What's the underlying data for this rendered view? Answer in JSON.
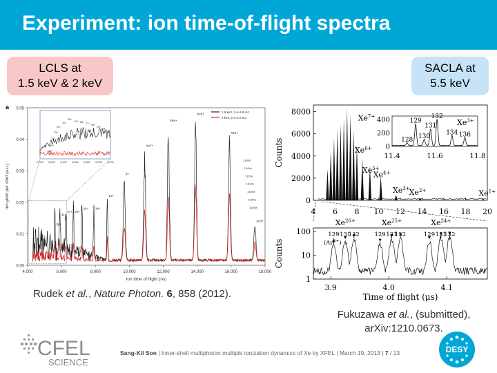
{
  "slide": {
    "title": "Experiment: ion time-of-flight spectra",
    "lcls_box": [
      "LCLS at",
      "1.5 keV & 2 keV"
    ],
    "sacla_box": [
      "SACLA at",
      "5.5 keV"
    ],
    "left_citation": {
      "authors": "Rudek ",
      "etal": "et al.",
      "sep": ", ",
      "journal": "Nature Photon.",
      "vol": "6",
      "rest": ", 858 (2012)."
    },
    "right_citation": {
      "line1a": "Fukuzawa ",
      "line1b": "et al.",
      "line1c": ", (submitted),",
      "line2": "arXiv:1210.0673."
    }
  },
  "footer": {
    "author": "Sang-Kil Son",
    "text": "Inner-shell multiphoton multiple ionization dynamics of Xe by XFEL",
    "date": "March 19, 2013",
    "page": "7",
    "total": "/ 13"
  },
  "logos": {
    "cfel_top": "CFEL",
    "cfel_bottom": "SCIENCE",
    "desy": "DESY"
  },
  "colors": {
    "title_bar": "#00a7d6",
    "lcls_box": "#f8c8c8",
    "sacla_box": "#c7e3f8",
    "series_black": "#222222",
    "series_red": "#dd2222"
  },
  "chart_data": [
    {
      "type": "line",
      "panel_label": "a",
      "xlabel": "Ion time of flight (ns)",
      "ylabel": "Ion yield per shot (a.u.)",
      "xlim": [
        4000,
        18000
      ],
      "ylim": [
        0,
        0.05
      ],
      "x_ticks": [
        "4,000",
        "6,000",
        "8,000",
        "10,000",
        "12,000",
        "14,000",
        "16,000",
        "18,000"
      ],
      "y_ticks": [
        "0.00",
        "0.01",
        "0.02",
        "0.03",
        "0.04",
        "0.05"
      ],
      "legend": [
        "1.5 keV, 2.4–2.6 mJ",
        "2 keV, 2.4–2.6 mJ"
      ],
      "series": [
        {
          "name": "1.5 keV, 2.4–2.6 mJ",
          "color": "#222222"
        },
        {
          "name": "2 keV, 2.4–2.6 mJ",
          "color": "#dd2222"
        }
      ],
      "peaks_x": [
        5600,
        5900,
        6250,
        6700,
        7200,
        7900,
        8700,
        9700,
        10900,
        12300,
        13900,
        15900,
        17400
      ],
      "peaks_black": [
        0.012,
        0.015,
        0.016,
        0.016,
        0.017,
        0.017,
        0.021,
        0.028,
        0.037,
        0.045,
        0.047,
        0.041,
        0.013
      ],
      "peaks_red": [
        0.004,
        0.005,
        0.005,
        0.005,
        0.005,
        0.005,
        0.008,
        0.012,
        0.018,
        0.024,
        0.028,
        0.023,
        0.006
      ],
      "peak_labels": [
        "35+",
        "31+",
        "27+",
        "20+",
        "16+",
        "14+",
        "10+",
        "9+",
        "Xe7+",
        "Xe6+",
        "Xe5+",
        "Xe4+",
        "Xe3+"
      ],
      "isotope_labels": [
        "136Xe",
        "134Xe",
        "132Xe",
        "131Xe",
        "130Xe",
        "129Xe",
        "128Xe"
      ],
      "inset": {
        "x_ticks": [
          "5,000",
          "5,200",
          "5,400",
          "5,600",
          "5,800",
          "6,000",
          "6,200"
        ],
        "labels": [
          "30+",
          "31+",
          "29+",
          "28+",
          "27+",
          "26+",
          "25+",
          "24+",
          "32+",
          "33+",
          "34+",
          "35+",
          "36+"
        ]
      }
    },
    {
      "type": "line",
      "xlabel": "",
      "ylabel": "Counts",
      "xlim": [
        4,
        20
      ],
      "ylim": [
        0,
        8600
      ],
      "x_ticks": [
        "4",
        "6",
        "8",
        "10",
        "12",
        "14",
        "16",
        "18",
        "20"
      ],
      "y_ticks": [
        "0",
        "2000",
        "4000",
        "6000",
        "8000"
      ],
      "peaks_x": [
        5.3,
        5.6,
        5.9,
        6.2,
        6.5,
        6.8,
        7.1,
        7.4,
        7.7,
        8.0,
        8.5,
        9.2,
        10.2,
        11.6,
        13.8,
        19.6
      ],
      "peaks_y": [
        2800,
        4500,
        5600,
        6400,
        6900,
        7400,
        8400,
        7800,
        6300,
        5000,
        3800,
        3100,
        2200,
        500,
        250,
        150
      ],
      "annotations": [
        "Xe7+",
        "Xe6+",
        "Xe5+",
        "Xe4+",
        "Xe3+",
        "Xe2+",
        "Xe1+"
      ],
      "inset": {
        "xlim": [
          11.4,
          11.8
        ],
        "x_ticks": [
          "11.4",
          "11.6",
          "11.8"
        ],
        "y_ticks": [
          "0",
          "200",
          "400"
        ],
        "label": "Xe3+",
        "isotopes": [
          "128",
          "129",
          "130",
          "131",
          "132",
          "134",
          "136"
        ],
        "isotope_x": [
          11.47,
          11.51,
          11.55,
          11.58,
          11.61,
          11.68,
          11.74
        ],
        "isotope_y": [
          40,
          320,
          90,
          250,
          390,
          150,
          120
        ]
      }
    },
    {
      "type": "line",
      "xlabel": "Time of flight (μs)",
      "ylabel": "Counts",
      "xlim": [
        3.87,
        4.17
      ],
      "ylim": [
        1,
        100
      ],
      "yscale": "log",
      "x_ticks": [
        "3.9",
        "4.0",
        "4.1"
      ],
      "y_ticks": [
        "1",
        "10",
        "100"
      ],
      "groups": [
        {
          "ion": "Xe26+",
          "isotopes": [
            "129",
            "131",
            "132"
          ],
          "x": [
            3.905,
            3.925,
            3.94
          ],
          "y": [
            30,
            45,
            55
          ]
        },
        {
          "ion": "Xe25+",
          "isotopes": [
            "129",
            "131",
            "132"
          ],
          "x": [
            3.985,
            4.005,
            4.02
          ],
          "y": [
            35,
            55,
            60
          ]
        },
        {
          "ion": "Xe24+",
          "isotopes": [
            "129",
            "131",
            "132"
          ],
          "x": [
            4.07,
            4.09,
            4.105
          ],
          "y": [
            45,
            65,
            70
          ]
        }
      ],
      "extra_label": "Ar8+"
    }
  ]
}
